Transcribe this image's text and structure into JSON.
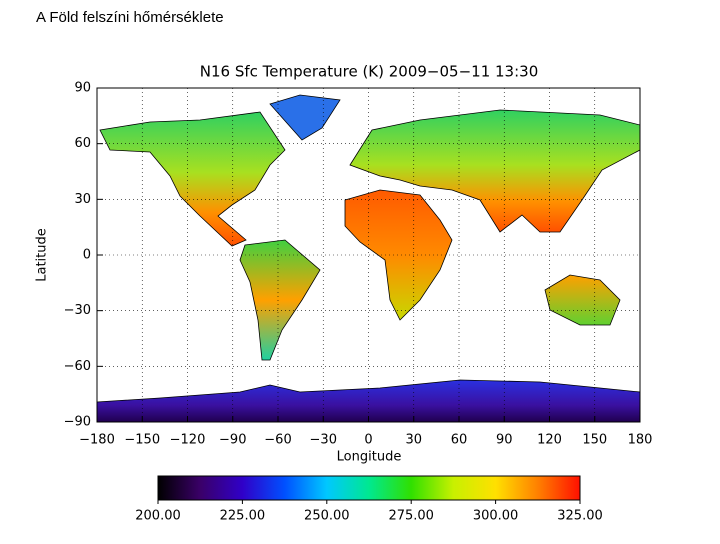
{
  "slide_title": "A Föld felszíni hőmérséklete",
  "chart_data": {
    "type": "map",
    "title": "N16 Sfc Temperature (K) 2009−05−11 13:30",
    "x_label": "Longitude",
    "y_label": "Latitude",
    "xlim": [
      -180,
      180
    ],
    "xticks": [
      {
        "value": -180,
        "label": "−180"
      },
      {
        "value": -150,
        "label": "−150"
      },
      {
        "value": -120,
        "label": "−120"
      },
      {
        "value": -90,
        "label": "−90"
      },
      {
        "value": -60,
        "label": "−60"
      },
      {
        "value": -30,
        "label": "−30"
      },
      0,
      30,
      60,
      90,
      120,
      150,
      180
    ],
    "ylim": [
      -90,
      90
    ],
    "yticks": [
      {
        "value": -90,
        "label": "−90"
      },
      {
        "value": -60,
        "label": "−60"
      },
      {
        "value": -30,
        "label": "−30"
      },
      0,
      30,
      60,
      90
    ],
    "grid": true,
    "colorbar": {
      "lim": [
        200,
        325
      ],
      "ticks": [
        {
          "value": 200,
          "label": "200.00"
        },
        {
          "value": 225,
          "label": "225.00"
        },
        {
          "value": 250,
          "label": "250.00"
        },
        {
          "value": 275,
          "label": "275.00"
        },
        {
          "value": 300,
          "label": "300.00"
        },
        {
          "value": 325,
          "label": "325.00"
        }
      ],
      "colors": [
        "#000000",
        "#3a0068",
        "#3000c8",
        "#0050ff",
        "#00c8ff",
        "#00e890",
        "#30e000",
        "#c8f000",
        "#ffe000",
        "#ff8000",
        "#ff1000"
      ]
    }
  }
}
